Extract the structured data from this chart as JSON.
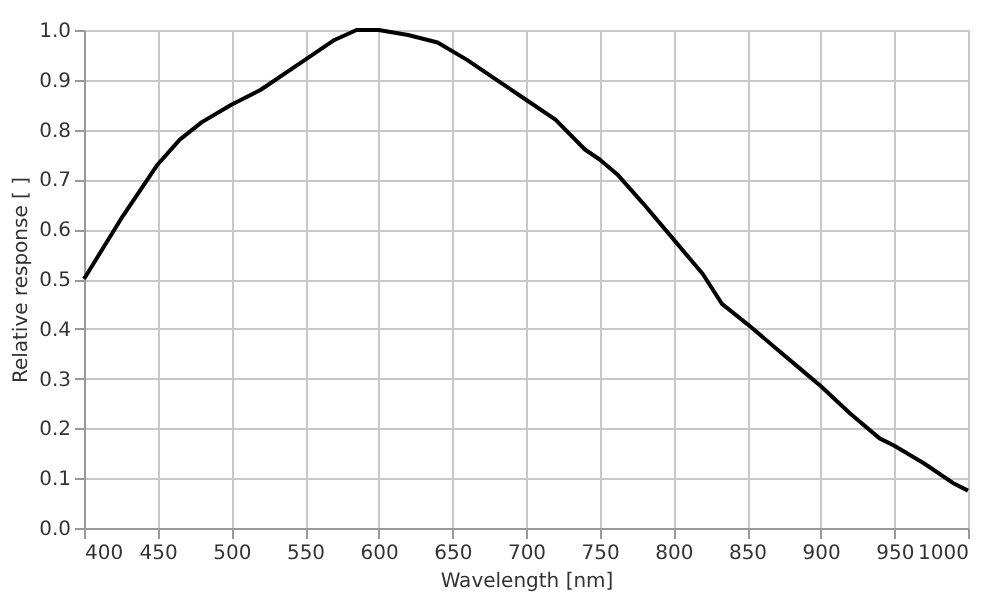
{
  "chart_data": {
    "type": "line",
    "xlabel": "Wavelength [nm]",
    "ylabel": "Relative response [ ]",
    "x": [
      400,
      425,
      450,
      465,
      480,
      500,
      520,
      550,
      570,
      585,
      600,
      620,
      640,
      660,
      680,
      700,
      720,
      740,
      750,
      762,
      780,
      800,
      820,
      833,
      850,
      870,
      890,
      900,
      920,
      940,
      950,
      970,
      990,
      1000
    ],
    "series": [
      {
        "color": "#000000",
        "values": [
          0.5,
          0.62,
          0.73,
          0.78,
          0.815,
          0.85,
          0.88,
          0.94,
          0.98,
          1.0,
          1.0,
          0.99,
          0.975,
          0.94,
          0.9,
          0.86,
          0.82,
          0.76,
          0.74,
          0.71,
          0.65,
          0.58,
          0.51,
          0.45,
          0.41,
          0.36,
          0.31,
          0.285,
          0.23,
          0.18,
          0.165,
          0.13,
          0.09,
          0.075
        ]
      }
    ],
    "xlim": [
      400,
      1000
    ],
    "xticks": [
      400,
      450,
      500,
      550,
      600,
      650,
      700,
      750,
      800,
      850,
      900,
      950,
      1000
    ],
    "ylim": [
      0,
      1
    ],
    "yticks": [
      {
        "value": 0,
        "label": "0.0"
      },
      0.1,
      0.2,
      0.3,
      0.4,
      0.5,
      0.6,
      0.7,
      0.8,
      0.9,
      {
        "value": 1,
        "label": "1.0"
      }
    ],
    "grid": true,
    "marker": "none",
    "line_style": "solid"
  }
}
